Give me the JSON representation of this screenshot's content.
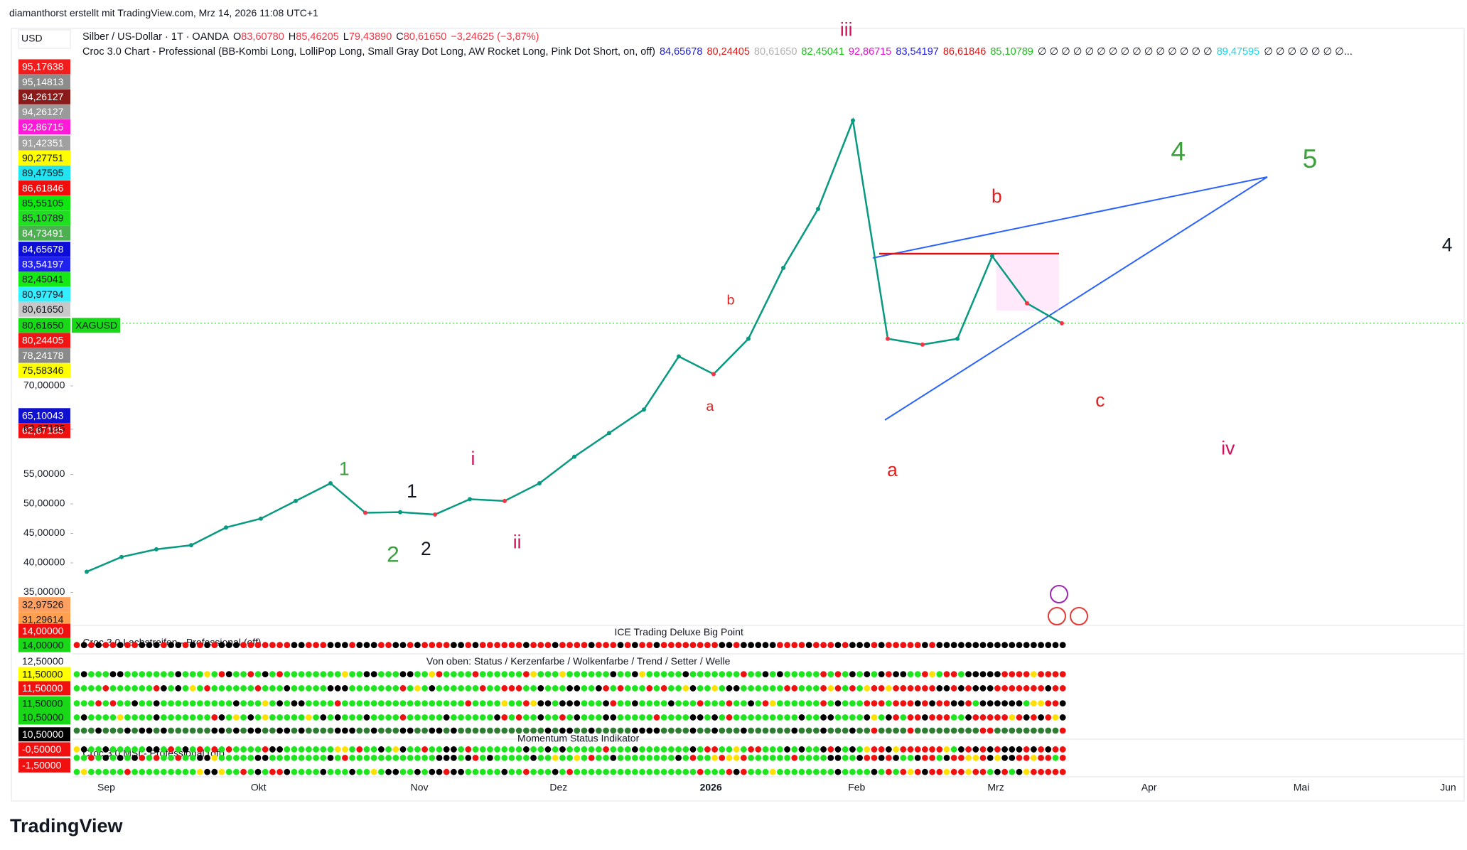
{
  "header": {
    "credit": "diamanthorst erstellt mit TradingView.com, Mrz 14, 2026 11:08 UTC+1",
    "currency": "USD"
  },
  "symbol": {
    "name": "Silber / US-Dollar · 1T · OANDA",
    "ohlc": [
      {
        "key": "O",
        "value": "83,60780"
      },
      {
        "key": "H",
        "value": "85,46205"
      },
      {
        "key": "L",
        "value": "79,43890"
      },
      {
        "key": "C",
        "value": "80,61650"
      }
    ],
    "change": "−3,24625 (−3,87%)",
    "change_color": "#f23645"
  },
  "indicator": {
    "name": "Croc 3.0 Chart - Professional (BB-Kombi Long, LolliPop Long, Small Gray Dot Long, AW Rocket Long, Pink Dot Short, on, off)",
    "values": [
      {
        "text": "84,65678",
        "color": "#1a1ad6"
      },
      {
        "text": "80,24405",
        "color": "#e01818"
      },
      {
        "text": "80,61650",
        "color": "#b0b0b0"
      },
      {
        "text": "82,45041",
        "color": "#10c810"
      },
      {
        "text": "92,86715",
        "color": "#e010d0"
      },
      {
        "text": "83,54197",
        "color": "#2020e0"
      },
      {
        "text": "86,61846",
        "color": "#e01010"
      },
      {
        "text": "85,10789",
        "color": "#18c018"
      },
      {
        "text": "∅ ∅ ∅ ∅ ∅ ∅ ∅ ∅ ∅ ∅ ∅ ∅ ∅ ∅ ∅",
        "color": "#131722"
      },
      {
        "text": "89,47595",
        "color": "#10d8e8"
      },
      {
        "text": "∅ ∅ ∅ ∅ ∅ ∅ ∅...",
        "color": "#131722"
      }
    ]
  },
  "price_scale": {
    "boxes": [
      {
        "label": "95,17638",
        "color": "#f21c1c",
        "text": "#fff"
      },
      {
        "label": "95,14813",
        "color": "#8c8c8c",
        "text": "#fff"
      },
      {
        "label": "94,26127",
        "color": "#8b1a1a",
        "text": "#fff"
      },
      {
        "label": "94,26127",
        "color": "#9a9a9a",
        "text": "#fff"
      },
      {
        "label": "92,86715",
        "color": "#ff19d8",
        "text": "#fff"
      },
      {
        "label": "91,42351",
        "color": "#a0a0a0",
        "text": "#fff"
      },
      {
        "label": "90,27751",
        "color": "#ffff00",
        "text": "#131722"
      },
      {
        "label": "89,47595",
        "color": "#22e4f0",
        "text": "#131722"
      },
      {
        "label": "86,61846",
        "color": "#f20d0d",
        "text": "#fff"
      },
      {
        "label": "85,55105",
        "color": "#0ee80e",
        "text": "#131722"
      },
      {
        "label": "85,10789",
        "color": "#1ee01e",
        "text": "#131722"
      },
      {
        "label": "84,73491",
        "color": "#4caf50",
        "text": "#fff"
      },
      {
        "label": "84,65678",
        "color": "#0d0dd9",
        "text": "#fff"
      },
      {
        "label": "83,54197",
        "color": "#2222ee",
        "text": "#fff"
      },
      {
        "label": "82,45041",
        "color": "#15e815",
        "text": "#131722"
      },
      {
        "label": "80,97794",
        "color": "#33eeff",
        "text": "#131722"
      },
      {
        "label": "80,61650",
        "color": "#c8c8c8",
        "text": "#131722"
      },
      {
        "label": "80,61650",
        "color": "#18d818",
        "text": "#131722"
      },
      {
        "label": "80,24405",
        "color": "#f01414",
        "text": "#fff"
      },
      {
        "label": "78,24178",
        "color": "#8a8a8a",
        "text": "#fff"
      },
      {
        "label": "75,58346",
        "color": "#ffff00",
        "text": "#131722"
      },
      {
        "label": "65,10043",
        "color": "#1010d0",
        "text": "#fff"
      },
      {
        "label": "62,67185",
        "color": "#f01010",
        "text": "#fff"
      },
      {
        "label": "32,97526",
        "color": "#ffa060",
        "text": "#131722"
      },
      {
        "label": "31,29614",
        "color": "#ff9f50",
        "text": "#131722"
      }
    ],
    "symbol_tag": "XAGUSD",
    "ticks": [
      {
        "value": 70,
        "label": "70,00000"
      },
      {
        "value": 62.67185,
        "label": "62,67185"
      },
      {
        "value": 55,
        "label": "55,00000"
      },
      {
        "value": 50,
        "label": "50,00000"
      },
      {
        "value": 45,
        "label": "45,00000"
      },
      {
        "value": 40,
        "label": "40,00000"
      },
      {
        "value": 35,
        "label": "35,00000"
      }
    ],
    "current": 80.6165
  },
  "time_axis": [
    "Sep",
    "Okt",
    "Nov",
    "Dez",
    "2026",
    "Feb",
    "Mrz",
    "Apr",
    "Mai",
    "Jun"
  ],
  "closes": [
    38.5,
    41,
    42.3,
    43,
    46,
    47.5,
    50.5,
    53.5,
    48.5,
    48.6,
    48.2,
    50.8,
    50.5,
    53.5,
    58,
    62,
    66,
    75,
    72,
    78,
    90,
    100,
    115,
    78,
    77,
    78,
    92,
    84,
    80.6165
  ],
  "annotations": [
    {
      "text": "iii",
      "color": "#d0105a"
    },
    {
      "text": "4",
      "color": "#3ca03c"
    },
    {
      "text": "5",
      "color": "#3ca03c"
    },
    {
      "text": "b",
      "color": "#e02020"
    },
    {
      "text": "4",
      "color": "#131722"
    },
    {
      "text": "a",
      "color": "#e02020"
    },
    {
      "text": "c",
      "color": "#e02020"
    },
    {
      "text": "iv",
      "color": "#d0105a"
    },
    {
      "text": "b",
      "color": "#e02020"
    },
    {
      "text": "a",
      "color": "#e02020"
    },
    {
      "text": "1",
      "color": "#3ca03c"
    },
    {
      "text": "1",
      "color": "#131722"
    },
    {
      "text": "2",
      "color": "#3ca03c"
    },
    {
      "text": "2",
      "color": "#131722"
    },
    {
      "text": "i",
      "color": "#d0105a"
    },
    {
      "text": "ii",
      "color": "#d0105a"
    }
  ],
  "panels": {
    "ice_title": "ICE Trading Deluxe Big Point",
    "lach": "Croc 3.0 Lachstreifen - Professional (off)",
    "legend": "Von oben: Status / Kerzenfarbe / Wolkenfarbe / Trend / Setter / Welle",
    "msi_title": "Momentum Status Indikator",
    "msi": "Croc 3.0 MSI - Professional (off)",
    "boxes": [
      {
        "label": "14,00000",
        "color": "#f01010",
        "text": "#fff"
      },
      {
        "label": "14,00000",
        "color": "#18d818",
        "text": "#131722"
      },
      {
        "label": "12,50000",
        "color": "#ffffff",
        "text": "#131722"
      },
      {
        "label": "11,50000",
        "color": "#ffff00",
        "text": "#131722"
      },
      {
        "label": "11,50000",
        "color": "#f01010",
        "text": "#fff"
      },
      {
        "label": "11,50000",
        "color": "#18d818",
        "text": "#131722"
      },
      {
        "label": "10,50000",
        "color": "#18d818",
        "text": "#131722"
      },
      {
        "label": "10,50000",
        "color": "#000000",
        "text": "#fff"
      },
      {
        "label": "-0,50000",
        "color": "#f01010",
        "text": "#fff"
      },
      {
        "label": "-1,50000",
        "color": "#f01010",
        "text": "#fff"
      }
    ]
  },
  "brand": "TradingView"
}
